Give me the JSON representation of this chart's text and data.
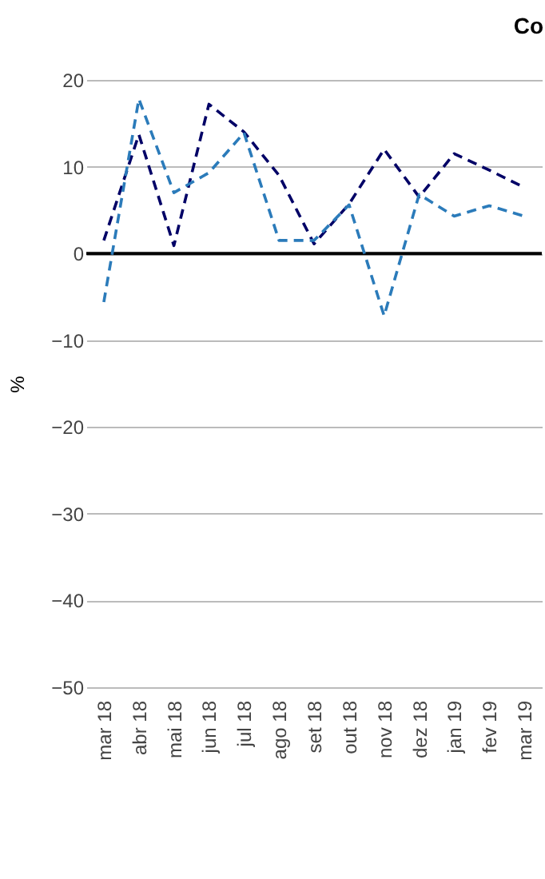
{
  "chart_data": {
    "type": "line",
    "title": "Co",
    "ylabel": "%",
    "categories": [
      "mar 18",
      "abr 18",
      "mai 18",
      "jun 18",
      "jul 18",
      "ago 18",
      "set 18",
      "out 18",
      "nov 18",
      "dez 18",
      "jan 19",
      "fev 19",
      "mar 19"
    ],
    "series": [
      {
        "color": "#000066",
        "values": [
          1.5,
          13.7,
          0.9,
          17.2,
          14,
          9,
          1.1,
          5.7,
          12,
          6.5,
          11.5,
          9.6,
          7.6
        ]
      },
      {
        "color": "#2b7bba",
        "values": [
          -5.6,
          17.8,
          7,
          9.3,
          13.9,
          1.5,
          1.5,
          5.6,
          -7.2,
          6.8,
          4.3,
          5.5,
          4.3
        ]
      }
    ],
    "ylim": [
      -50,
      20
    ],
    "yticks": [
      -50,
      -40,
      -30,
      -20,
      -10,
      0,
      10,
      20
    ],
    "grid": "y",
    "line_style": "dashed",
    "marker": "none",
    "ref_lines": [
      {
        "axis": "y",
        "value": 0,
        "color": "#000000"
      }
    ]
  }
}
